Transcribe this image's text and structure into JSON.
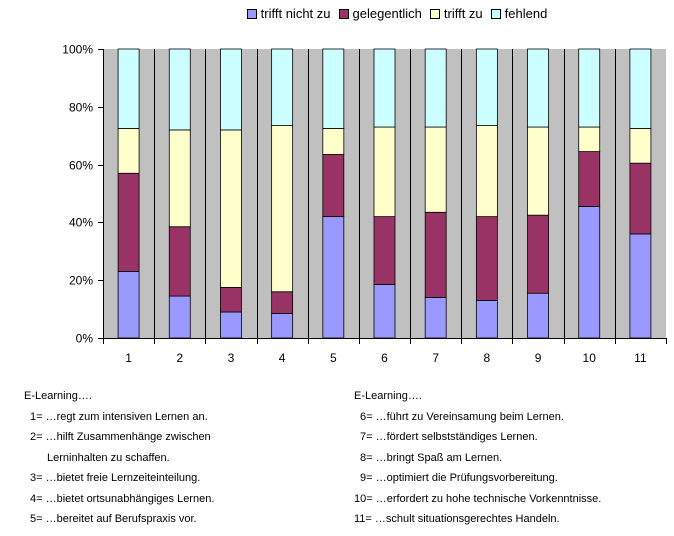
{
  "chart_data": {
    "type": "bar",
    "stacked": true,
    "percent": true,
    "categories": [
      "1",
      "2",
      "3",
      "4",
      "5",
      "6",
      "7",
      "8",
      "9",
      "10",
      "11"
    ],
    "series": [
      {
        "name": "trifft nicht zu",
        "color": "#9999ff",
        "values": [
          23,
          14.5,
          9,
          8.5,
          42,
          18.5,
          14,
          13,
          15.5,
          45.5,
          36
        ]
      },
      {
        "name": "gelegentlich",
        "color": "#993366",
        "values": [
          34,
          24,
          8.5,
          7.5,
          21.5,
          23.5,
          29.5,
          29,
          27,
          19,
          24.5
        ]
      },
      {
        "name": "trifft zu",
        "color": "#ffffcc",
        "values": [
          15.5,
          33.5,
          54.5,
          57.5,
          9,
          31,
          29.5,
          31.5,
          30.5,
          8.5,
          12
        ]
      },
      {
        "name": "fehlend",
        "color": "#ccffff",
        "values": [
          27.5,
          28,
          28,
          26.5,
          27.5,
          27,
          27,
          26.5,
          27,
          27,
          27.5
        ]
      }
    ],
    "yticks": [
      "0%",
      "20%",
      "40%",
      "60%",
      "80%",
      "100%"
    ],
    "ylim": [
      0,
      100
    ],
    "plot_background": "#c0c0c0",
    "legend_position": "top"
  },
  "notes": {
    "left": {
      "head": "E-Learning….",
      "lines": [
        "1= …regt zum intensiven Lernen an.",
        "2= …hilft Zusammenhänge zwischen",
        "Lerninhalten zu schaffen.",
        "3= …bietet freie Lernzeiteinteilung.",
        "4= …bietet ortsunabhängiges Lernen.",
        "5= …bereitet auf Berufspraxis vor."
      ]
    },
    "right": {
      "head": "E-Learning….",
      "lines": [
        "6= …führt zu Vereinsamung beim Lernen.",
        "7= …fördert selbstständiges Lernen.",
        "8= …bringt Spaß am Lernen.",
        "9= …optimiert die Prüfungsvorbereitung.",
        "10= …erfordert zu hohe technische Vorkenntnisse.",
        "11= …schult situationsgerechtes Handeln."
      ]
    }
  }
}
